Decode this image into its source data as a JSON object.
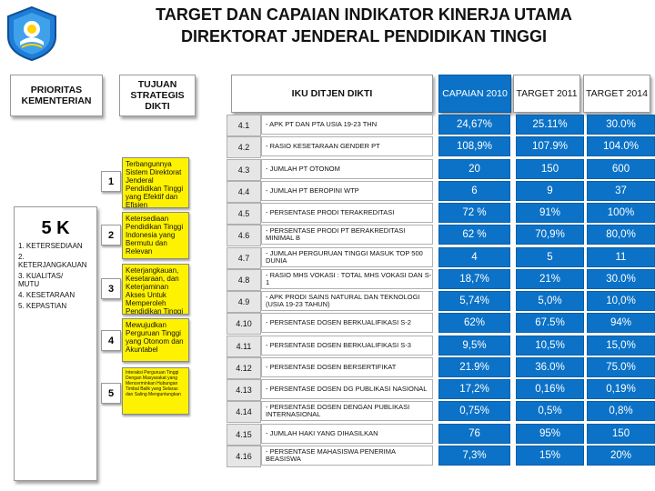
{
  "title_line1": "TARGET DAN CAPAIAN INDIKATOR KINERJA UTAMA",
  "title_line2": "DIREKTORAT JENDERAL PENDIDIKAN TINGGI",
  "headers": {
    "prioritas": "PRIORITAS KEMENTERIAN",
    "tujuan": "TUJUAN STRATEGIS DIKTI",
    "iku": "IKU DITJEN DIKTI",
    "capaian": "CAPAIAN 2010",
    "target2011": "TARGET 2011",
    "target2014": "TARGET 2014"
  },
  "priorities": {
    "title": "5 K",
    "items": [
      "1. KETERSEDIAAN",
      "2. KETERJANGKAUAN",
      "3. KUALITAS/ MUTU",
      "4. KESETARAAN",
      "5. KEPASTIAN"
    ]
  },
  "goals": [
    {
      "number": "1",
      "text": "Terbangunnya Sistem Direktorat Jenderal Pendidikan Tinggi yang Efektif dan Efisien"
    },
    {
      "number": "2",
      "text": "Ketersediaan Pendidikan Tinggi Indonesia yang Bermutu dan Relevan"
    },
    {
      "number": "3",
      "text": "Keterjangkauan, Kesetaraan, dan Keterjaminan Akses Untuk Memperoleh Pendidikan Tinggi"
    },
    {
      "number": "4",
      "text": "Mewujudkan Perguruan Tinggi yang Otonom dan Akuntabel"
    },
    {
      "number": "5",
      "text": "Interaksi Perguruan Tinggi Dengan Masyarakat yang Mencerminkan Hubungan Timbal Balik yang Selaras dan Saling Menguntungkan"
    }
  ],
  "indicators": [
    {
      "code": "4.1",
      "desc": "- APK PT DAN PTA USIA 19-23 THN",
      "capaian": "24,67%",
      "t2011": "25.11%",
      "t2014": "30.0%"
    },
    {
      "code": "4.2",
      "desc": "- RASIO KESETARAAN GENDER PT",
      "capaian": "108,9%",
      "t2011": "107.9%",
      "t2014": "104.0%"
    },
    {
      "code": "4.3",
      "desc": "- JUMLAH PT OTONOM",
      "capaian": "20",
      "t2011": "150",
      "t2014": "600"
    },
    {
      "code": "4.4",
      "desc": "- JUMLAH PT BEROPINI WTP",
      "capaian": "6",
      "t2011": "9",
      "t2014": "37"
    },
    {
      "code": "4.5",
      "desc": "- PERSENTASE PRODI TERAKREDITASI",
      "capaian": "72 %",
      "t2011": "91%",
      "t2014": "100%"
    },
    {
      "code": "4.6",
      "desc": "- PERSENTASE PRODI PT BERAKREDITASI MINIMAL B",
      "capaian": "62 %",
      "t2011": "70,9%",
      "t2014": "80,0%"
    },
    {
      "code": "4.7",
      "desc": "- JUMLAH PERGURUAN TINGGI MASUK TOP 500 DUNIA",
      "capaian": "4",
      "t2011": "5",
      "t2014": "11"
    },
    {
      "code": "4.8",
      "desc": "- RASIO MHS VOKASI : TOTAL MHS VOKASI DAN S-1",
      "capaian": "18,7%",
      "t2011": "21%",
      "t2014": "30.0%"
    },
    {
      "code": "4.9",
      "desc": "- APK PRODI SAINS NATURAL DAN TEKNOLOGI (USIA 19-23 TAHUN)",
      "capaian": "5,74%",
      "t2011": "5,0%",
      "t2014": "10,0%"
    },
    {
      "code": "4.10",
      "desc": "- PERSENTASE DOSEN BERKUALIFIKASI S-2",
      "capaian": "62%",
      "t2011": "67.5%",
      "t2014": "94%"
    },
    {
      "code": "4.11",
      "desc": "- PERSENTASE DOSEN BERKUALIFIKASI S-3",
      "capaian": "9,5%",
      "t2011": "10,5%",
      "t2014": "15,0%"
    },
    {
      "code": "4.12",
      "desc": "- PERSENTASE DOSEN BERSERTIFIKAT",
      "capaian": "21.9%",
      "t2011": "36.0%",
      "t2014": "75.0%"
    },
    {
      "code": "4.13",
      "desc": "- PERSENTASE DOSEN DG PUBLIKASI NASIONAL",
      "capaian": "17,2%",
      "t2011": "0,16%",
      "t2014": "0,19%"
    },
    {
      "code": "4.14",
      "desc": "- PERSENTASE DOSEN DENGAN PUBLIKASI INTERNASIONAL",
      "capaian": "0,75%",
      "t2011": "0,5%",
      "t2014": "0,8%"
    },
    {
      "code": "4.15",
      "desc": "- JUMLAH HAKI YANG DIHASILKAN",
      "capaian": "76",
      "t2011": "95%",
      "t2014": "150"
    },
    {
      "code": "4.16",
      "desc": "- PERSENTASE MAHASISWA PENERIMA BEASISWA",
      "capaian": "7,3%",
      "t2011": "15%",
      "t2014": "20%"
    }
  ]
}
